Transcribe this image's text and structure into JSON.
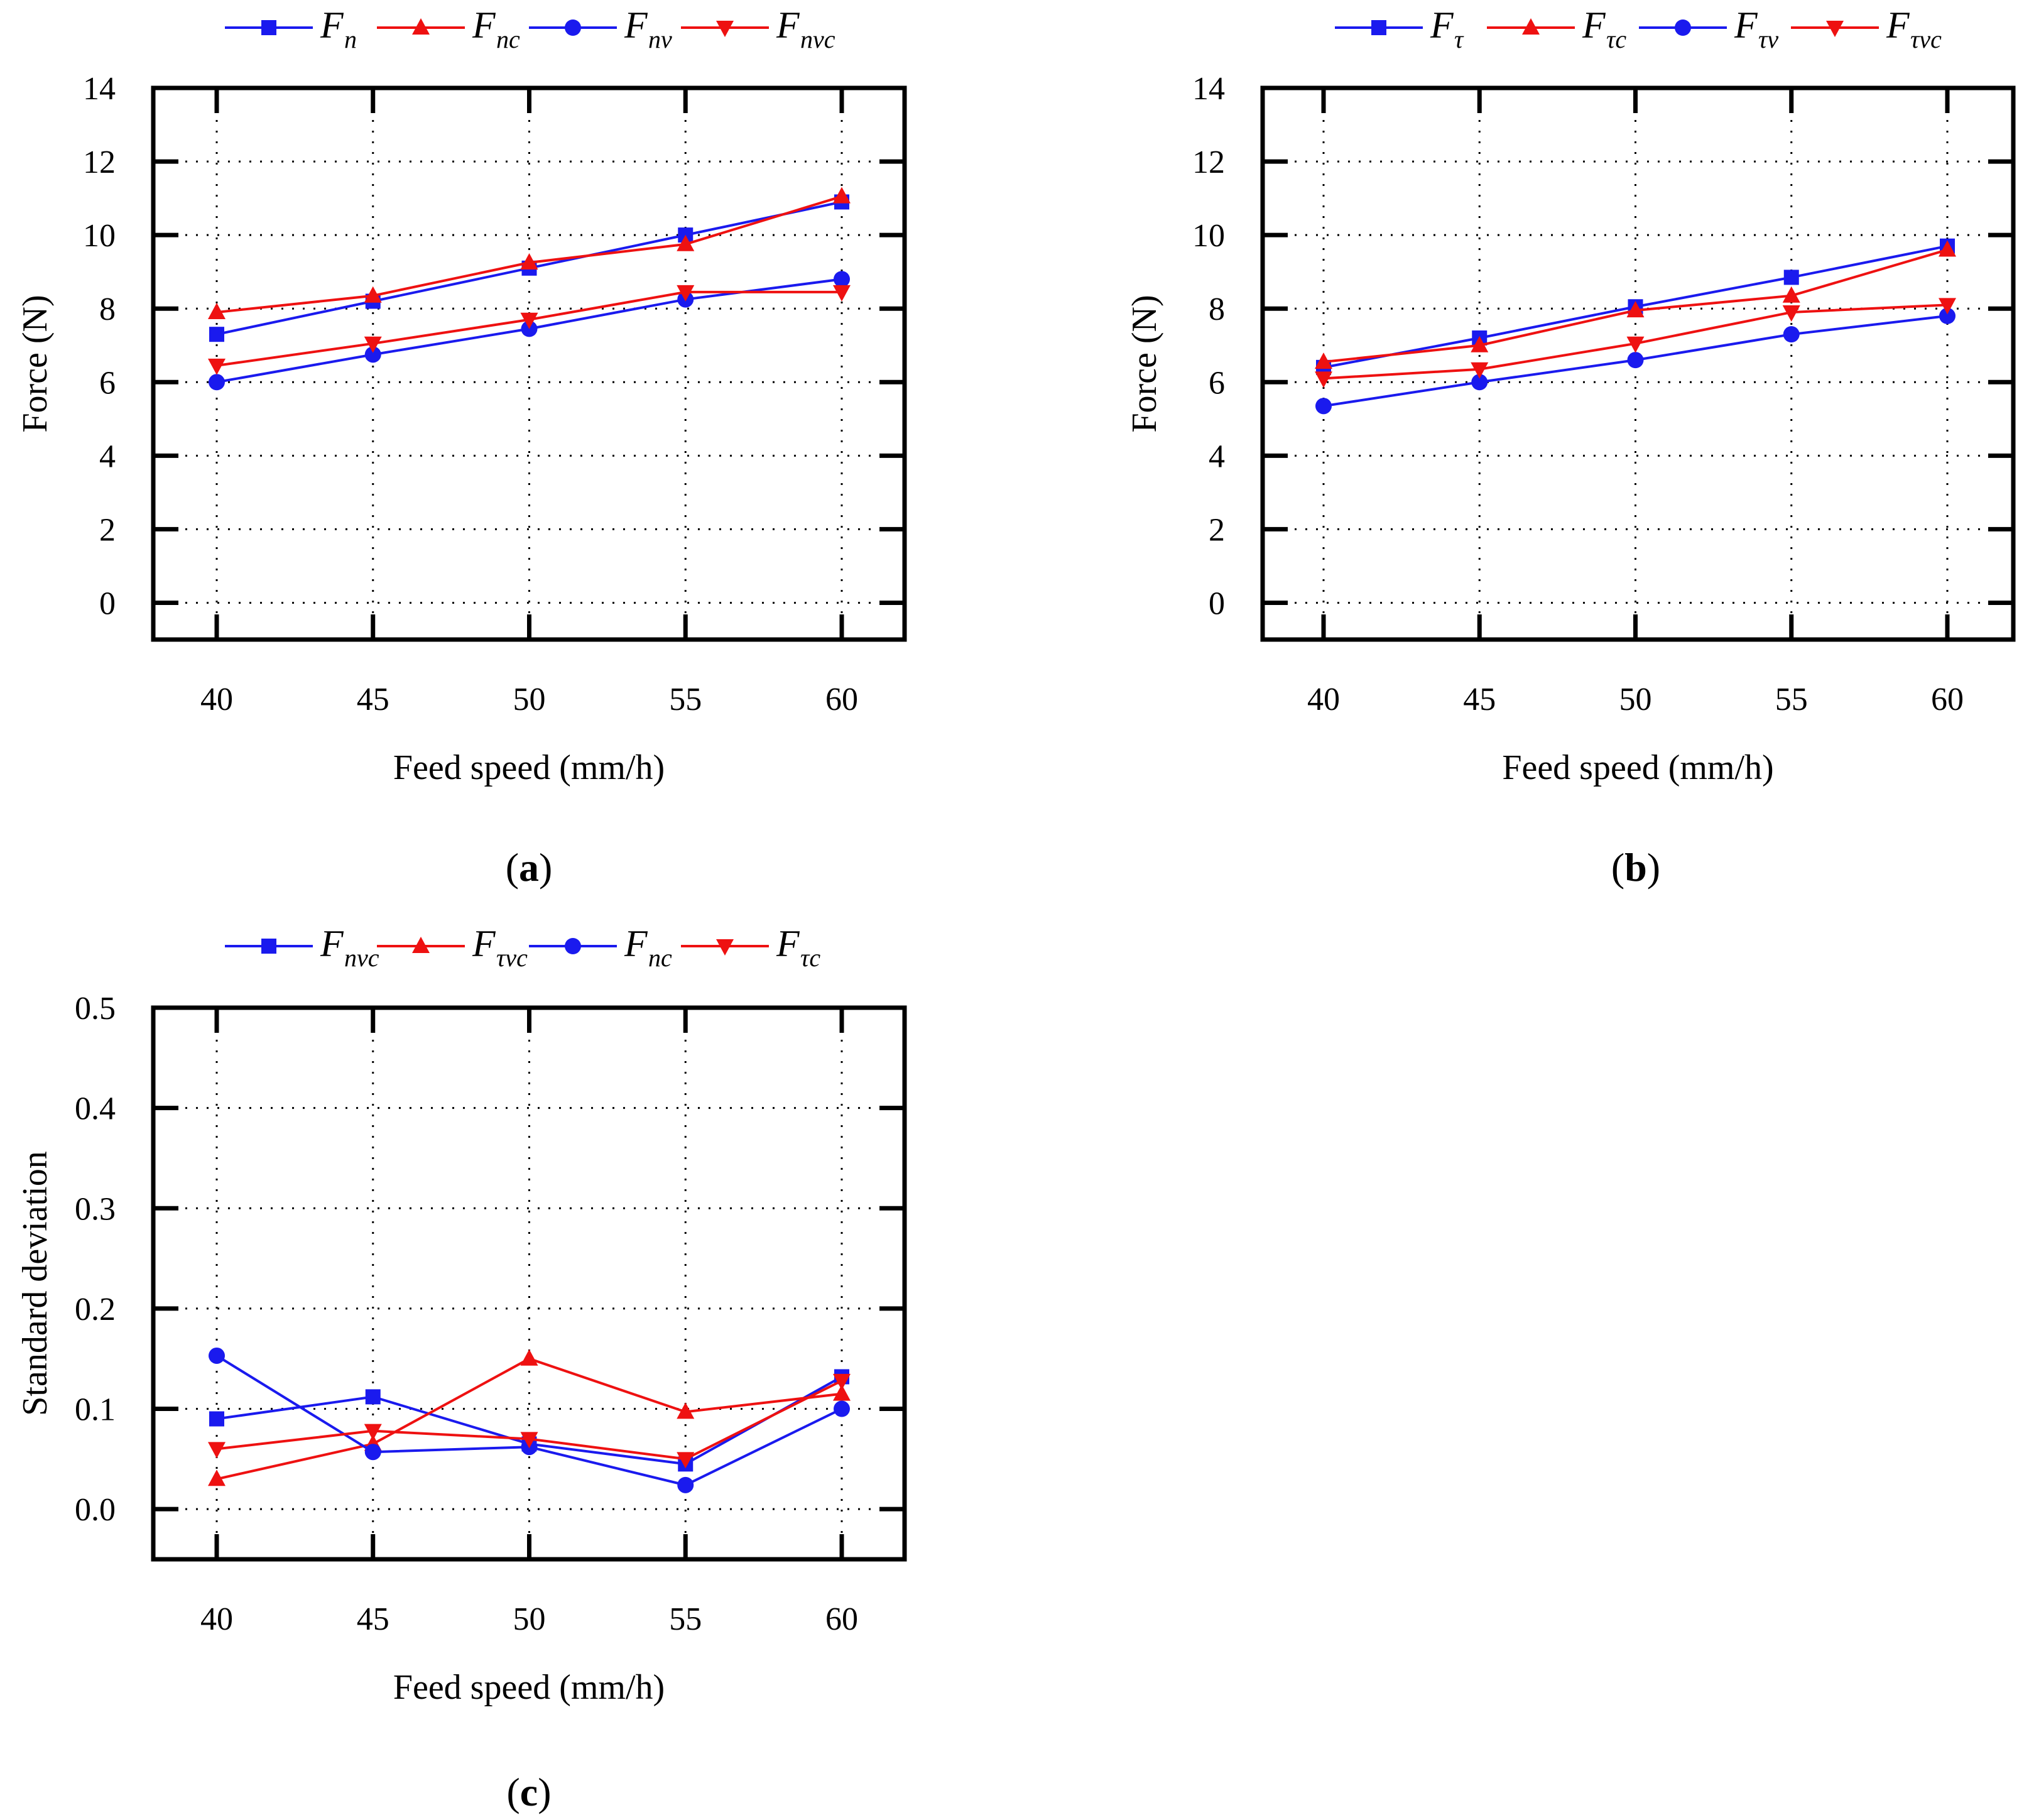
{
  "colors": {
    "blue": "#1a1aee",
    "red": "#ee1111",
    "axis": "#000000"
  },
  "panels": [
    {
      "id": "a",
      "caption_open": "(",
      "caption_letter": "a",
      "caption_close": ")",
      "chart_data": {
        "type": "line",
        "title": "",
        "xlabel": "Feed speed (mm/h)",
        "ylabel": "Force (N)",
        "x": [
          40,
          45,
          50,
          55,
          60
        ],
        "xticks": [
          "40",
          "45",
          "50",
          "55",
          "60"
        ],
        "yticks": [
          "0",
          "2",
          "4",
          "6",
          "8",
          "10",
          "12",
          "14"
        ],
        "ylim": [
          -1,
          14
        ],
        "grid": true,
        "legend_position": "top",
        "series": [
          {
            "name": "Fn",
            "base": "F",
            "sub": "n",
            "color": "blue",
            "marker": "square",
            "values": [
              7.3,
              8.2,
              9.1,
              10.0,
              10.9
            ]
          },
          {
            "name": "Fnc",
            "base": "F",
            "sub": "nc",
            "color": "red",
            "marker": "triangle-up",
            "values": [
              7.9,
              8.35,
              9.25,
              9.75,
              11.05
            ]
          },
          {
            "name": "Fnv",
            "base": "F",
            "sub": "nv",
            "color": "blue",
            "marker": "circle",
            "values": [
              6.0,
              6.75,
              7.45,
              8.25,
              8.8
            ]
          },
          {
            "name": "Fnvc",
            "base": "F",
            "sub": "nvc",
            "color": "red",
            "marker": "triangle-down",
            "values": [
              6.45,
              7.05,
              7.7,
              8.45,
              8.45
            ]
          }
        ]
      }
    },
    {
      "id": "b",
      "caption_open": "(",
      "caption_letter": "b",
      "caption_close": ")",
      "chart_data": {
        "type": "line",
        "title": "",
        "xlabel": "Feed speed (mm/h)",
        "ylabel": "Force (N)",
        "x": [
          40,
          45,
          50,
          55,
          60
        ],
        "xticks": [
          "40",
          "45",
          "50",
          "55",
          "60"
        ],
        "yticks": [
          "0",
          "2",
          "4",
          "6",
          "8",
          "10",
          "12",
          "14"
        ],
        "ylim": [
          -1,
          14
        ],
        "grid": true,
        "legend_position": "top",
        "series": [
          {
            "name": "Fτ",
            "base": "F",
            "sub": "τ",
            "color": "blue",
            "marker": "square",
            "values": [
              6.4,
              7.2,
              8.05,
              8.85,
              9.7
            ]
          },
          {
            "name": "Fτc",
            "base": "F",
            "sub": "τc",
            "color": "red",
            "marker": "triangle-up",
            "values": [
              6.55,
              7.0,
              7.95,
              8.35,
              9.6
            ]
          },
          {
            "name": "Fτv",
            "base": "F",
            "sub": "τv",
            "color": "blue",
            "marker": "circle",
            "values": [
              5.35,
              6.0,
              6.6,
              7.3,
              7.8
            ]
          },
          {
            "name": "Fτvc",
            "base": "F",
            "sub": "τvc",
            "color": "red",
            "marker": "triangle-down",
            "values": [
              6.1,
              6.35,
              7.05,
              7.9,
              8.1
            ]
          }
        ]
      }
    },
    {
      "id": "c",
      "caption_open": "(",
      "caption_letter": "c",
      "caption_close": ")",
      "chart_data": {
        "type": "line",
        "title": "",
        "xlabel": "Feed speed (mm/h)",
        "ylabel": "Standard deviation",
        "x": [
          40,
          45,
          50,
          55,
          60
        ],
        "xticks": [
          "40",
          "45",
          "50",
          "55",
          "60"
        ],
        "yticks": [
          "0.0",
          "0.1",
          "0.2",
          "0.3",
          "0.4",
          "0.5"
        ],
        "ylim": [
          -0.05,
          0.5
        ],
        "grid": true,
        "legend_position": "top",
        "series": [
          {
            "name": "Fnvc",
            "base": "F",
            "sub": "nvc",
            "color": "blue",
            "marker": "square",
            "values": [
              0.09,
              0.112,
              0.065,
              0.045,
              0.132
            ]
          },
          {
            "name": "Fτvc",
            "base": "F",
            "sub": "τvc",
            "color": "red",
            "marker": "triangle-up",
            "values": [
              0.03,
              0.065,
              0.15,
              0.097,
              0.115
            ]
          },
          {
            "name": "Fnc",
            "base": "F",
            "sub": "nc",
            "color": "blue",
            "marker": "circle",
            "values": [
              0.153,
              0.057,
              0.062,
              0.024,
              0.1
            ]
          },
          {
            "name": "Fτc",
            "base": "F",
            "sub": "τc",
            "color": "red",
            "marker": "triangle-down",
            "values": [
              0.06,
              0.078,
              0.07,
              0.05,
              0.128
            ]
          }
        ]
      }
    }
  ]
}
